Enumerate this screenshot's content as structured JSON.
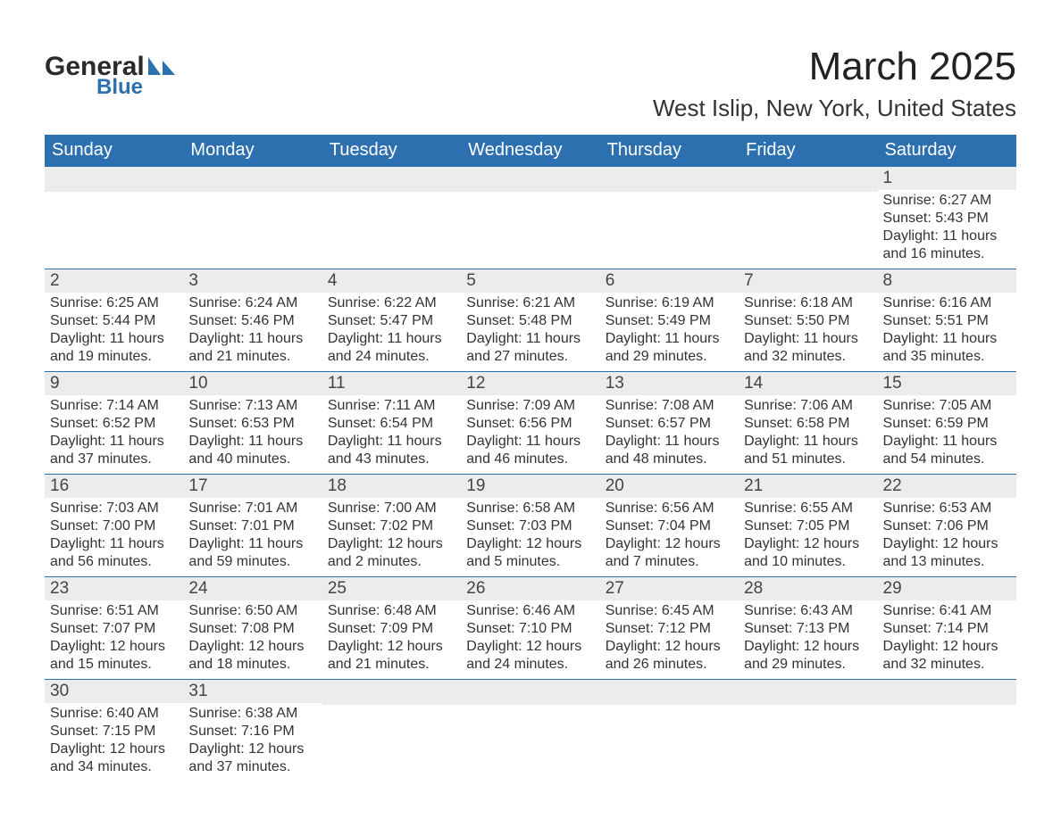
{
  "brand": {
    "name": "General",
    "sub": "Blue"
  },
  "title": "March 2025",
  "location": "West Islip, New York, United States",
  "colors": {
    "header_bg": "#2c70b0",
    "header_text": "#ffffff",
    "daynum_bg": "#ececec",
    "text": "#333333",
    "row_border": "#2c70b0",
    "page_bg": "#ffffff"
  },
  "typography": {
    "title_fontsize": 44,
    "location_fontsize": 26,
    "dayheader_fontsize": 20,
    "daynum_fontsize": 19,
    "body_fontsize": 16
  },
  "calendar": {
    "day_headers": [
      "Sunday",
      "Monday",
      "Tuesday",
      "Wednesday",
      "Thursday",
      "Friday",
      "Saturday"
    ],
    "weeks": [
      [
        null,
        null,
        null,
        null,
        null,
        null,
        {
          "n": "1",
          "sunrise": "Sunrise: 6:27 AM",
          "sunset": "Sunset: 5:43 PM",
          "daylight": "Daylight: 11 hours and 16 minutes."
        }
      ],
      [
        {
          "n": "2",
          "sunrise": "Sunrise: 6:25 AM",
          "sunset": "Sunset: 5:44 PM",
          "daylight": "Daylight: 11 hours and 19 minutes."
        },
        {
          "n": "3",
          "sunrise": "Sunrise: 6:24 AM",
          "sunset": "Sunset: 5:46 PM",
          "daylight": "Daylight: 11 hours and 21 minutes."
        },
        {
          "n": "4",
          "sunrise": "Sunrise: 6:22 AM",
          "sunset": "Sunset: 5:47 PM",
          "daylight": "Daylight: 11 hours and 24 minutes."
        },
        {
          "n": "5",
          "sunrise": "Sunrise: 6:21 AM",
          "sunset": "Sunset: 5:48 PM",
          "daylight": "Daylight: 11 hours and 27 minutes."
        },
        {
          "n": "6",
          "sunrise": "Sunrise: 6:19 AM",
          "sunset": "Sunset: 5:49 PM",
          "daylight": "Daylight: 11 hours and 29 minutes."
        },
        {
          "n": "7",
          "sunrise": "Sunrise: 6:18 AM",
          "sunset": "Sunset: 5:50 PM",
          "daylight": "Daylight: 11 hours and 32 minutes."
        },
        {
          "n": "8",
          "sunrise": "Sunrise: 6:16 AM",
          "sunset": "Sunset: 5:51 PM",
          "daylight": "Daylight: 11 hours and 35 minutes."
        }
      ],
      [
        {
          "n": "9",
          "sunrise": "Sunrise: 7:14 AM",
          "sunset": "Sunset: 6:52 PM",
          "daylight": "Daylight: 11 hours and 37 minutes."
        },
        {
          "n": "10",
          "sunrise": "Sunrise: 7:13 AM",
          "sunset": "Sunset: 6:53 PM",
          "daylight": "Daylight: 11 hours and 40 minutes."
        },
        {
          "n": "11",
          "sunrise": "Sunrise: 7:11 AM",
          "sunset": "Sunset: 6:54 PM",
          "daylight": "Daylight: 11 hours and 43 minutes."
        },
        {
          "n": "12",
          "sunrise": "Sunrise: 7:09 AM",
          "sunset": "Sunset: 6:56 PM",
          "daylight": "Daylight: 11 hours and 46 minutes."
        },
        {
          "n": "13",
          "sunrise": "Sunrise: 7:08 AM",
          "sunset": "Sunset: 6:57 PM",
          "daylight": "Daylight: 11 hours and 48 minutes."
        },
        {
          "n": "14",
          "sunrise": "Sunrise: 7:06 AM",
          "sunset": "Sunset: 6:58 PM",
          "daylight": "Daylight: 11 hours and 51 minutes."
        },
        {
          "n": "15",
          "sunrise": "Sunrise: 7:05 AM",
          "sunset": "Sunset: 6:59 PM",
          "daylight": "Daylight: 11 hours and 54 minutes."
        }
      ],
      [
        {
          "n": "16",
          "sunrise": "Sunrise: 7:03 AM",
          "sunset": "Sunset: 7:00 PM",
          "daylight": "Daylight: 11 hours and 56 minutes."
        },
        {
          "n": "17",
          "sunrise": "Sunrise: 7:01 AM",
          "sunset": "Sunset: 7:01 PM",
          "daylight": "Daylight: 11 hours and 59 minutes."
        },
        {
          "n": "18",
          "sunrise": "Sunrise: 7:00 AM",
          "sunset": "Sunset: 7:02 PM",
          "daylight": "Daylight: 12 hours and 2 minutes."
        },
        {
          "n": "19",
          "sunrise": "Sunrise: 6:58 AM",
          "sunset": "Sunset: 7:03 PM",
          "daylight": "Daylight: 12 hours and 5 minutes."
        },
        {
          "n": "20",
          "sunrise": "Sunrise: 6:56 AM",
          "sunset": "Sunset: 7:04 PM",
          "daylight": "Daylight: 12 hours and 7 minutes."
        },
        {
          "n": "21",
          "sunrise": "Sunrise: 6:55 AM",
          "sunset": "Sunset: 7:05 PM",
          "daylight": "Daylight: 12 hours and 10 minutes."
        },
        {
          "n": "22",
          "sunrise": "Sunrise: 6:53 AM",
          "sunset": "Sunset: 7:06 PM",
          "daylight": "Daylight: 12 hours and 13 minutes."
        }
      ],
      [
        {
          "n": "23",
          "sunrise": "Sunrise: 6:51 AM",
          "sunset": "Sunset: 7:07 PM",
          "daylight": "Daylight: 12 hours and 15 minutes."
        },
        {
          "n": "24",
          "sunrise": "Sunrise: 6:50 AM",
          "sunset": "Sunset: 7:08 PM",
          "daylight": "Daylight: 12 hours and 18 minutes."
        },
        {
          "n": "25",
          "sunrise": "Sunrise: 6:48 AM",
          "sunset": "Sunset: 7:09 PM",
          "daylight": "Daylight: 12 hours and 21 minutes."
        },
        {
          "n": "26",
          "sunrise": "Sunrise: 6:46 AM",
          "sunset": "Sunset: 7:10 PM",
          "daylight": "Daylight: 12 hours and 24 minutes."
        },
        {
          "n": "27",
          "sunrise": "Sunrise: 6:45 AM",
          "sunset": "Sunset: 7:12 PM",
          "daylight": "Daylight: 12 hours and 26 minutes."
        },
        {
          "n": "28",
          "sunrise": "Sunrise: 6:43 AM",
          "sunset": "Sunset: 7:13 PM",
          "daylight": "Daylight: 12 hours and 29 minutes."
        },
        {
          "n": "29",
          "sunrise": "Sunrise: 6:41 AM",
          "sunset": "Sunset: 7:14 PM",
          "daylight": "Daylight: 12 hours and 32 minutes."
        }
      ],
      [
        {
          "n": "30",
          "sunrise": "Sunrise: 6:40 AM",
          "sunset": "Sunset: 7:15 PM",
          "daylight": "Daylight: 12 hours and 34 minutes."
        },
        {
          "n": "31",
          "sunrise": "Sunrise: 6:38 AM",
          "sunset": "Sunset: 7:16 PM",
          "daylight": "Daylight: 12 hours and 37 minutes."
        },
        null,
        null,
        null,
        null,
        null
      ]
    ]
  }
}
